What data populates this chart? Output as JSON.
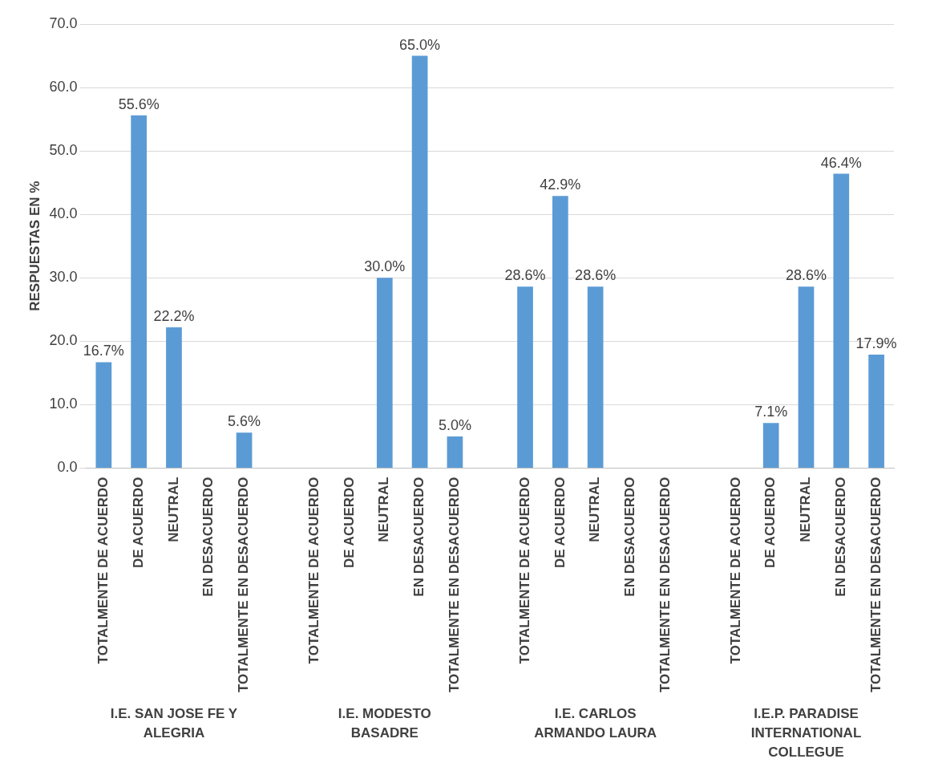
{
  "chart_data": {
    "type": "bar",
    "ylabel": "RESPUESTAS EN %",
    "categories": [
      "TOTALMENTE DE ACUERDO",
      "DE ACUERDO",
      "NEUTRAL",
      "EN DESACUERDO",
      "TOTALMENTE EN DESACUERDO",
      null,
      "TOTALMENTE DE ACUERDO",
      "DE ACUERDO",
      "NEUTRAL",
      "EN DESACUERDO",
      "TOTALMENTE EN DESACUERDO",
      null,
      "TOTALMENTE DE ACUERDO",
      "DE ACUERDO",
      "NEUTRAL",
      "EN DESACUERDO",
      "TOTALMENTE EN DESACUERDO",
      null,
      "TOTALMENTE DE ACUERDO",
      "DE ACUERDO",
      "NEUTRAL",
      "EN DESACUERDO",
      "TOTALMENTE EN DESACUERDO"
    ],
    "values": [
      16.7,
      55.6,
      22.2,
      0,
      5.6,
      null,
      0,
      0,
      30.0,
      65.0,
      5.0,
      null,
      28.6,
      42.9,
      28.6,
      0,
      0,
      null,
      0,
      7.1,
      28.6,
      46.4,
      17.9
    ],
    "value_labels": [
      "16.7%",
      "55.6%",
      "22.2%",
      null,
      "5.6%",
      null,
      null,
      null,
      "30.0%",
      "65.0%",
      "5.0%",
      null,
      "28.6%",
      "42.9%",
      "28.6%",
      null,
      null,
      null,
      null,
      "7.1%",
      "28.6%",
      "46.4%",
      "17.9%"
    ],
    "color": "#5b9bd5",
    "ylim": [
      0,
      70
    ],
    "yticks": [
      {
        "value": 0,
        "label": "0.0"
      },
      {
        "value": 10,
        "label": "10.0"
      },
      {
        "value": 20,
        "label": "20.0"
      },
      {
        "value": 30,
        "label": "30.0"
      },
      {
        "value": 40,
        "label": "40.0"
      },
      {
        "value": 50,
        "label": "50.0"
      },
      {
        "value": 60,
        "label": "60.0"
      },
      {
        "value": 70,
        "label": "70.0"
      }
    ],
    "grid": "y",
    "legend": false,
    "annotations": [
      "I.E. SAN JOSE FE Y\nALEGRIA",
      "I.E. MODESTO\nBASADRE",
      "I.E. CARLOS\nARMANDO LAURA",
      "I.E.P. PARADISE\nINTERNATIONAL\nCOLLEGUE"
    ]
  }
}
